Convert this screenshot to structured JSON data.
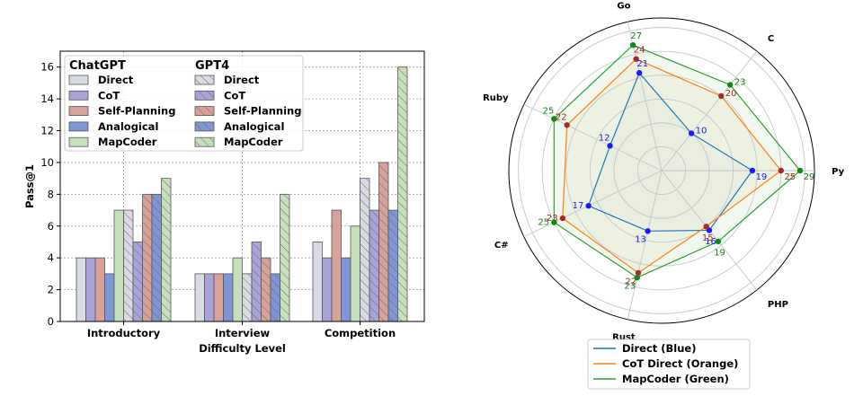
{
  "chart_data": [
    {
      "type": "bar",
      "xlabel": "Difficulty Level",
      "ylabel": "Pass@1",
      "ylim": [
        0,
        17
      ],
      "yticks": [
        "0",
        "2",
        "4",
        "6",
        "8",
        "10",
        "12",
        "14",
        "16"
      ],
      "grid": "dotted",
      "categories": [
        "Introductory",
        "Interview",
        "Competition"
      ],
      "legend": {
        "placement": "top-left",
        "group_titles": [
          "ChatGPT",
          "GPT4"
        ],
        "items": [
          "Direct",
          "CoT",
          "Self-Planning",
          "Analogical",
          "MapCoder"
        ]
      },
      "colors": [
        "#d9dbe4",
        "#a9a3d8",
        "#d6a29a",
        "#7d97d6",
        "#c6e0bb"
      ],
      "series": [
        {
          "name": "Direct",
          "group": "ChatGPT",
          "hatched": false,
          "values": [
            4,
            3,
            5
          ]
        },
        {
          "name": "CoT",
          "group": "ChatGPT",
          "hatched": false,
          "values": [
            4,
            3,
            4
          ]
        },
        {
          "name": "Self-Planning",
          "group": "ChatGPT",
          "hatched": false,
          "values": [
            4,
            3,
            7
          ]
        },
        {
          "name": "Analogical",
          "group": "ChatGPT",
          "hatched": false,
          "values": [
            3,
            3,
            4
          ]
        },
        {
          "name": "MapCoder",
          "group": "ChatGPT",
          "hatched": false,
          "values": [
            7,
            4,
            6
          ]
        },
        {
          "name": "Direct",
          "group": "GPT4",
          "hatched": true,
          "values": [
            7,
            3,
            9
          ]
        },
        {
          "name": "CoT",
          "group": "GPT4",
          "hatched": true,
          "values": [
            5,
            5,
            7
          ]
        },
        {
          "name": "Self-Planning",
          "group": "GPT4",
          "hatched": true,
          "values": [
            8,
            4,
            10
          ]
        },
        {
          "name": "Analogical",
          "group": "GPT4",
          "hatched": true,
          "values": [
            8,
            3,
            7
          ]
        },
        {
          "name": "MapCoder",
          "group": "GPT4",
          "hatched": true,
          "values": [
            9,
            8,
            16
          ]
        }
      ]
    },
    {
      "type": "radar",
      "axes": [
        "Py",
        "C",
        "Go",
        "Ruby",
        "C#",
        "Rust",
        "PHP"
      ],
      "rmax": 32,
      "ring_values": [
        5,
        10,
        15,
        20,
        25,
        30
      ],
      "legend_placement": "bottom",
      "series": [
        {
          "name": "Direct (Blue)",
          "color": "#1f77b4",
          "dot": "#1a1aff",
          "label_color": "#1a1aee",
          "fill": "#dfe8f2",
          "values": [
            19,
            10,
            21,
            12,
            17,
            13,
            16
          ]
        },
        {
          "name": "CoT Direct (Orange)",
          "color": "#ff7f0e",
          "dot": "#a52a2a",
          "label_color": "#9c2a2a",
          "fill": "#f2e2c8",
          "values": [
            25,
            20,
            24,
            22,
            23,
            22,
            15
          ]
        },
        {
          "name": "MapCoder (Green)",
          "color": "#2ca02c",
          "dot": "#0f8a0f",
          "label_color": "#1a7a1a",
          "fill": "#e4f2e4",
          "values": [
            29,
            23,
            27,
            25,
            25,
            23,
            19
          ]
        }
      ]
    }
  ]
}
